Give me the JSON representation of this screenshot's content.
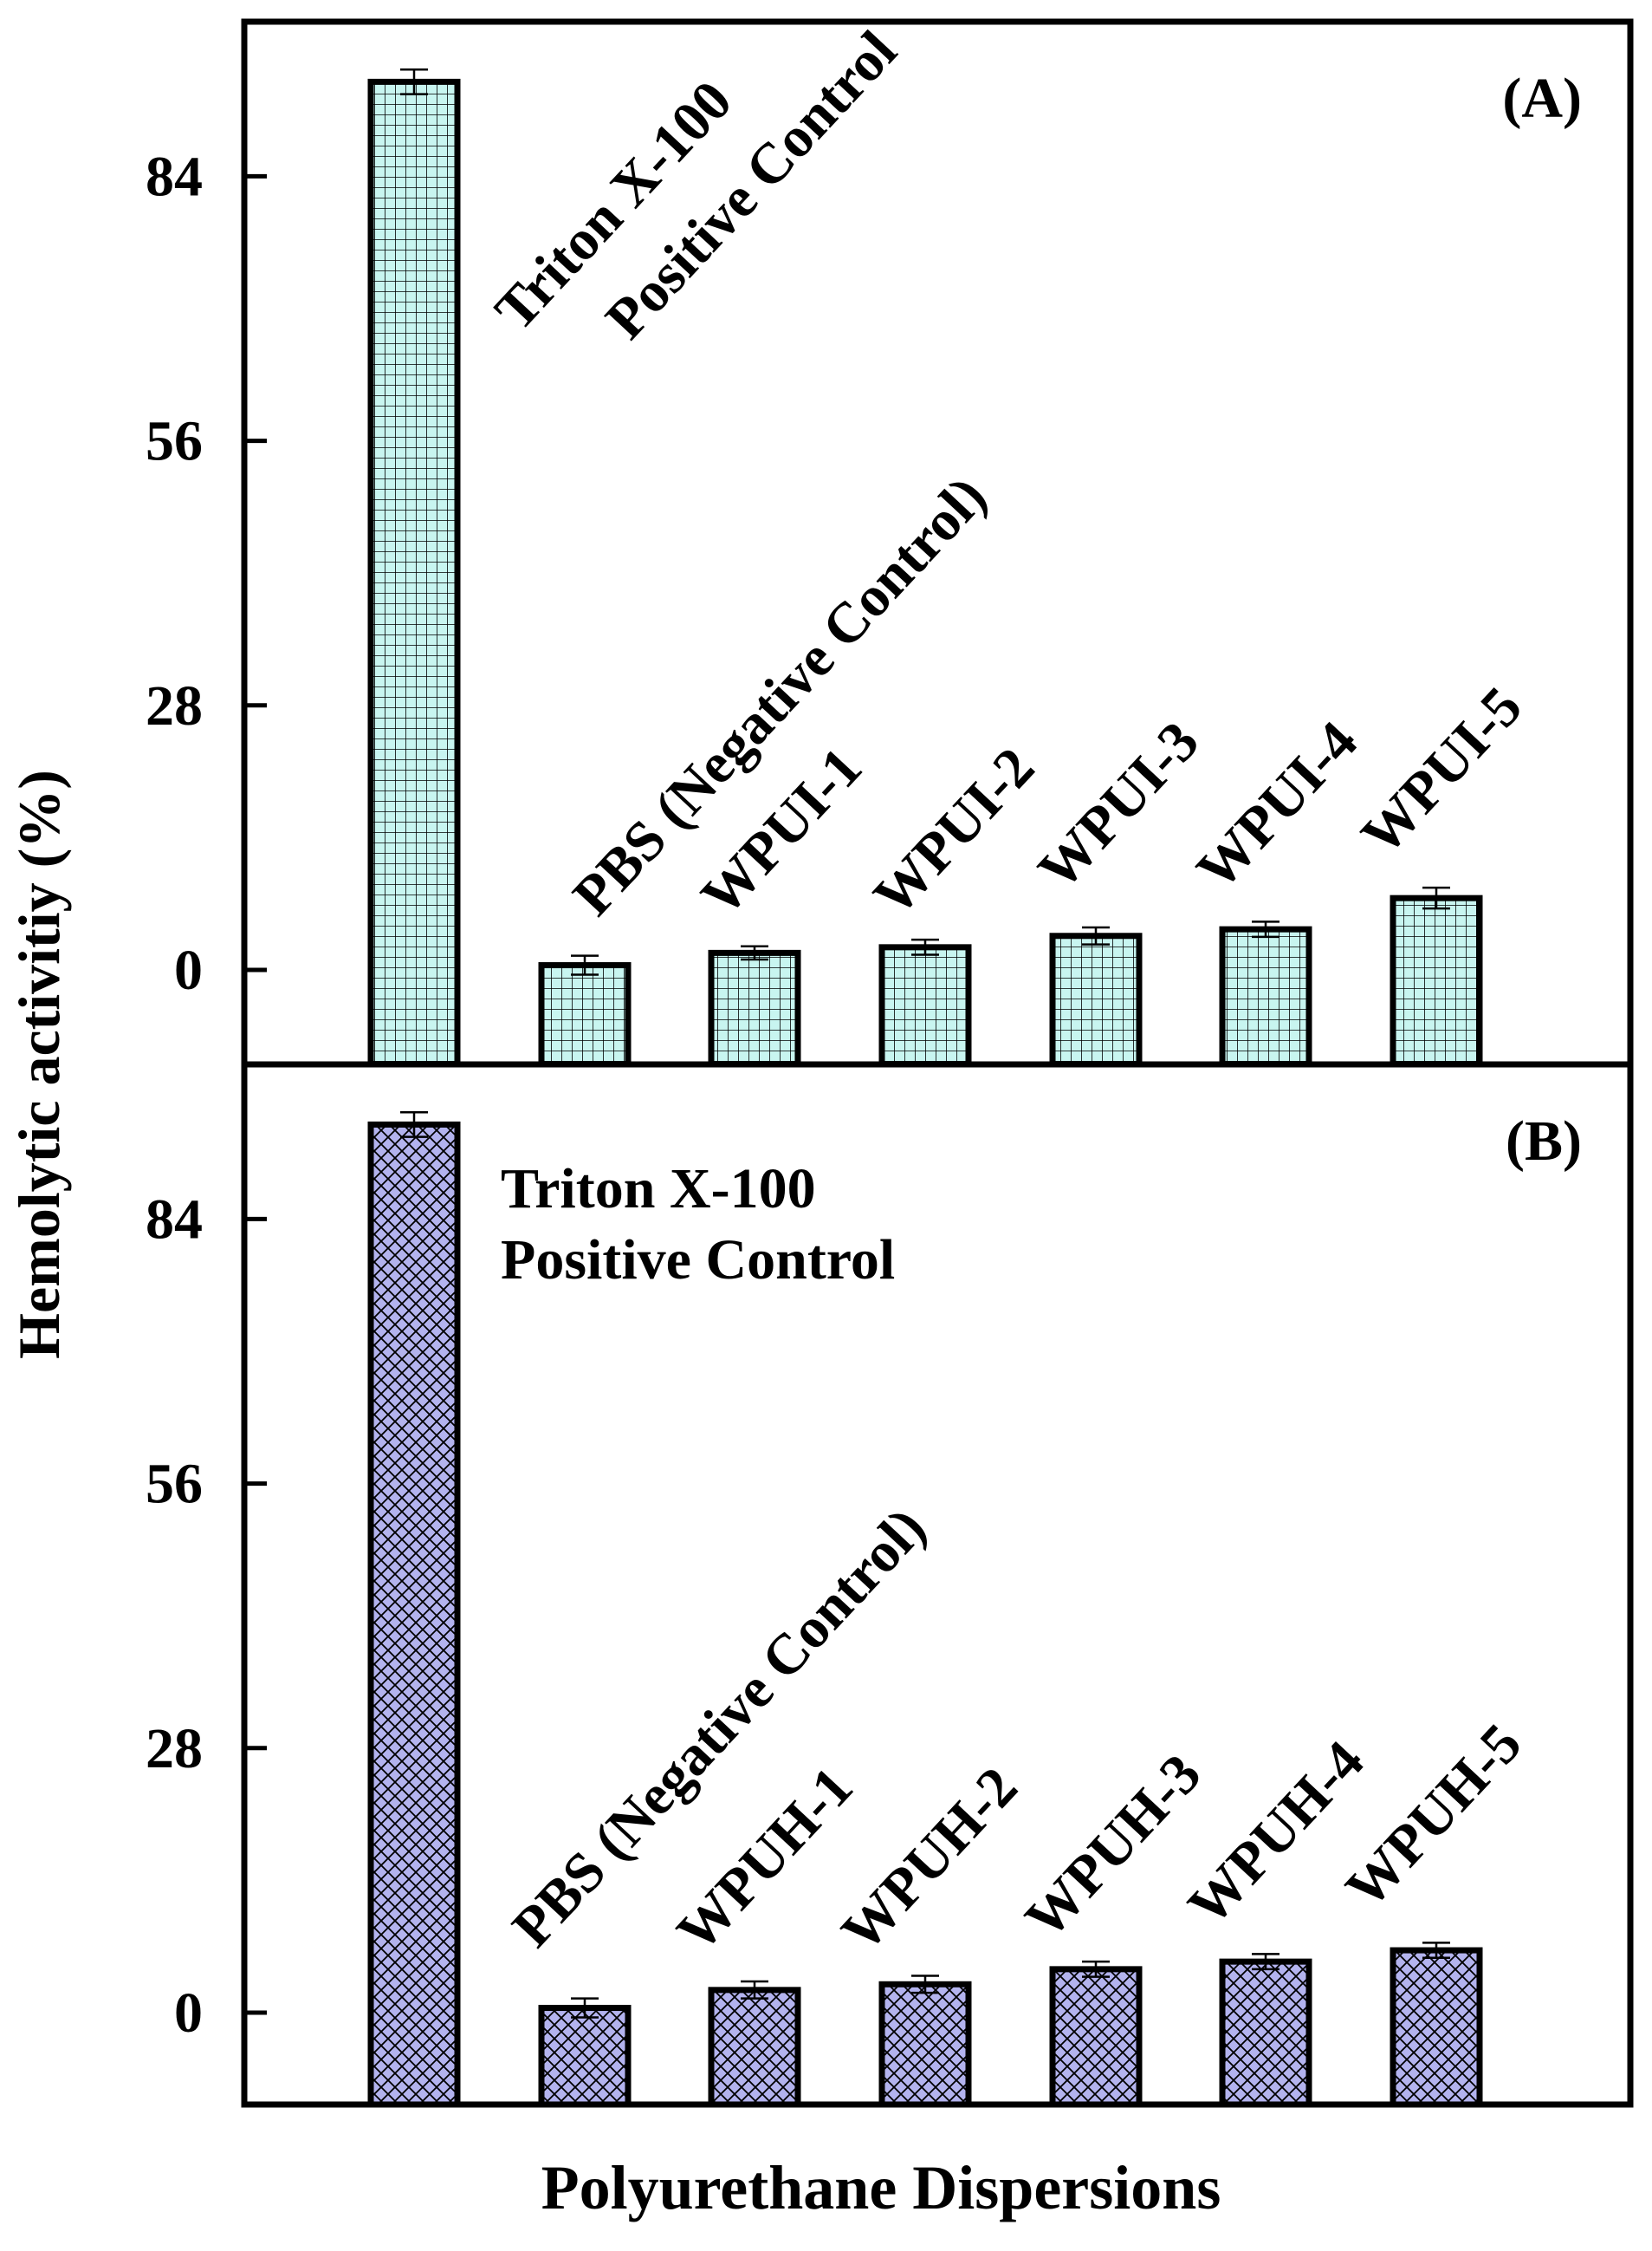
{
  "y_axis_label": "Hemolytic activitiy (%)",
  "x_axis_label": "Polyurethane Dispersions",
  "colors": {
    "panel_a_fill": "#c8f5f0",
    "panel_b_fill": "#b3b3ee",
    "stroke": "#000000"
  },
  "chart_data": [
    {
      "type": "bar",
      "panel_label": "(A)",
      "pattern": "grid",
      "categories": [
        "Triton X-100 Positive Control",
        "PBS (Negative Control)",
        "WPUI-1",
        "WPUI-2",
        "WPUI-3",
        "WPUI-4",
        "WPUI-5"
      ],
      "bar_labels": [
        [
          "Triton X-100",
          "Positive Control"
        ],
        [
          "PBS (Negative Control)"
        ],
        [
          "WPUI-1"
        ],
        [
          "WPUI-2"
        ],
        [
          "WPUI-3"
        ],
        [
          "WPUI-4"
        ],
        [
          "WPUI-5"
        ]
      ],
      "values": [
        94.0,
        0.5,
        1.8,
        2.4,
        3.6,
        4.3,
        7.6
      ],
      "errors": [
        1.3,
        1.0,
        0.7,
        0.8,
        0.9,
        0.8,
        1.1
      ],
      "yticks": [
        0,
        28,
        56,
        84
      ],
      "ylim": [
        -10,
        101
      ],
      "xlabel": "Polyurethane Dispersions",
      "ylabel": "Hemolytic activitiy (%)"
    },
    {
      "type": "bar",
      "panel_label": "(B)",
      "pattern": "diamond",
      "categories": [
        "Triton X-100 Positive Control",
        "PBS (Negative Control)",
        "WPUH-1",
        "WPUH-2",
        "WPUH-3",
        "WPUH-4",
        "WPUH-5"
      ],
      "bar_labels": [
        [
          "Triton X-100",
          "Positive Control"
        ],
        [
          "PBS (Negative Control)"
        ],
        [
          "WPUH-1"
        ],
        [
          "WPUH-2"
        ],
        [
          "WPUH-3"
        ],
        [
          "WPUH-4"
        ],
        [
          "WPUH-5"
        ]
      ],
      "values": [
        94.0,
        0.5,
        2.4,
        3.0,
        4.6,
        5.4,
        6.6
      ],
      "errors": [
        1.3,
        1.0,
        0.9,
        0.9,
        0.8,
        0.8,
        0.8
      ],
      "yticks": [
        0,
        28,
        56,
        84
      ],
      "ylim": [
        -10,
        101
      ],
      "xlabel": "Polyurethane Dispersions",
      "ylabel": "Hemolytic activitiy (%)"
    }
  ]
}
